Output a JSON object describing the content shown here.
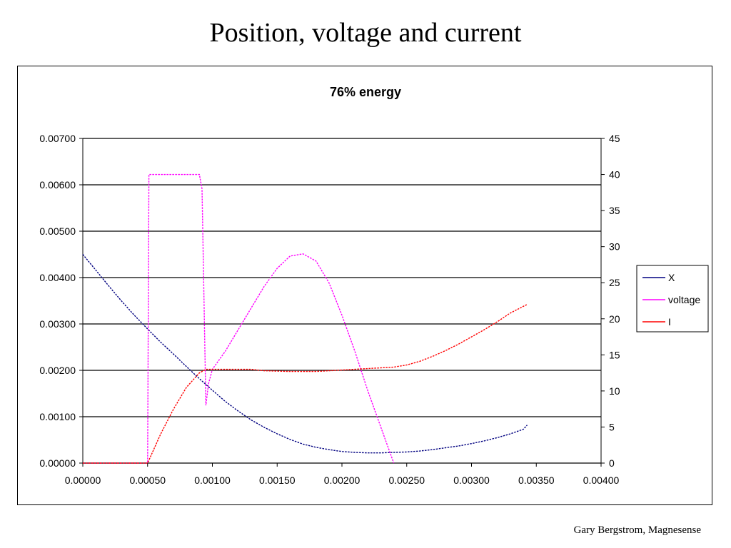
{
  "slide": {
    "title": "Position, voltage and current",
    "footer": "Gary Bergstrom, Magnesense"
  },
  "chart_data": {
    "type": "line",
    "title": "76% energy",
    "xlabel": "",
    "ylabel": "",
    "y2label": "",
    "xlim": [
      0,
      0.004
    ],
    "ylim": [
      0,
      0.007
    ],
    "y2lim": [
      0,
      45
    ],
    "x_ticks": [
      "0.00000",
      "0.00050",
      "0.00100",
      "0.00150",
      "0.00200",
      "0.00250",
      "0.00300",
      "0.00350",
      "0.00400"
    ],
    "y_ticks": [
      "0.00000",
      "0.00100",
      "0.00200",
      "0.00300",
      "0.00400",
      "0.00500",
      "0.00600",
      "0.00700"
    ],
    "y2_ticks": [
      "0",
      "5",
      "10",
      "15",
      "20",
      "25",
      "30",
      "35",
      "40",
      "45"
    ],
    "grid": "horizontal",
    "legend_position": "right",
    "series": [
      {
        "name": "X",
        "axis": "left",
        "color": "#000080",
        "points": [
          [
            0,
            0.0045
          ],
          [
            0.0001,
            0.00416
          ],
          [
            0.0002,
            0.00382
          ],
          [
            0.0003,
            0.00349
          ],
          [
            0.0004,
            0.00318
          ],
          [
            0.0005,
            0.00289
          ],
          [
            0.0006,
            0.00261
          ],
          [
            0.0007,
            0.00235
          ],
          [
            0.0008,
            0.00208
          ],
          [
            0.0009,
            0.00182
          ],
          [
            0.001,
            0.00157
          ],
          [
            0.0011,
            0.00133
          ],
          [
            0.0012,
            0.00112
          ],
          [
            0.0013,
            0.00093
          ],
          [
            0.0014,
            0.00077
          ],
          [
            0.0015,
            0.00063
          ],
          [
            0.0016,
            0.00051
          ],
          [
            0.0017,
            0.00041
          ],
          [
            0.0018,
            0.00034
          ],
          [
            0.0019,
            0.00029
          ],
          [
            0.002,
            0.00025
          ],
          [
            0.0021,
            0.00023
          ],
          [
            0.0022,
            0.00022
          ],
          [
            0.0023,
            0.00022
          ],
          [
            0.0024,
            0.00023
          ],
          [
            0.0025,
            0.00024
          ],
          [
            0.0026,
            0.00026
          ],
          [
            0.0027,
            0.00029
          ],
          [
            0.0028,
            0.00033
          ],
          [
            0.0029,
            0.00037
          ],
          [
            0.003,
            0.00042
          ],
          [
            0.0031,
            0.00048
          ],
          [
            0.0032,
            0.00055
          ],
          [
            0.0033,
            0.00063
          ],
          [
            0.0034,
            0.00073
          ],
          [
            0.00343,
            0.00082
          ]
        ]
      },
      {
        "name": "voltage",
        "axis": "right",
        "color": "#ff00ff",
        "points": [
          [
            0,
            0
          ],
          [
            0.0005,
            0
          ],
          [
            0.00051,
            40
          ],
          [
            0.0009,
            40
          ],
          [
            0.00092,
            38
          ],
          [
            0.00095,
            8
          ],
          [
            0.00097,
            11
          ],
          [
            0.001,
            13
          ],
          [
            0.0011,
            15.5
          ],
          [
            0.0012,
            18.5
          ],
          [
            0.0013,
            21.5
          ],
          [
            0.0014,
            24.5
          ],
          [
            0.0015,
            27
          ],
          [
            0.0016,
            28.7
          ],
          [
            0.0017,
            29
          ],
          [
            0.0018,
            28
          ],
          [
            0.0019,
            25
          ],
          [
            0.002,
            20.5
          ],
          [
            0.0021,
            15.5
          ],
          [
            0.0022,
            10
          ],
          [
            0.0023,
            5
          ],
          [
            0.0024,
            0
          ]
        ]
      },
      {
        "name": "I",
        "axis": "right",
        "color": "#ff0000",
        "points": [
          [
            0,
            0
          ],
          [
            0.0005,
            0
          ],
          [
            0.0006,
            4
          ],
          [
            0.0007,
            7.5
          ],
          [
            0.0008,
            10.5
          ],
          [
            0.0009,
            12.5
          ],
          [
            0.00095,
            13
          ],
          [
            0.0011,
            13
          ],
          [
            0.0013,
            13
          ],
          [
            0.0014,
            12.8
          ],
          [
            0.0016,
            12.7
          ],
          [
            0.0018,
            12.7
          ],
          [
            0.002,
            12.9
          ],
          [
            0.0022,
            13.1
          ],
          [
            0.0024,
            13.3
          ],
          [
            0.0025,
            13.6
          ],
          [
            0.0026,
            14.1
          ],
          [
            0.0027,
            14.8
          ],
          [
            0.0028,
            15.6
          ],
          [
            0.0029,
            16.5
          ],
          [
            0.003,
            17.5
          ],
          [
            0.0031,
            18.5
          ],
          [
            0.0032,
            19.6
          ],
          [
            0.0033,
            20.8
          ],
          [
            0.00343,
            22
          ]
        ]
      }
    ]
  }
}
